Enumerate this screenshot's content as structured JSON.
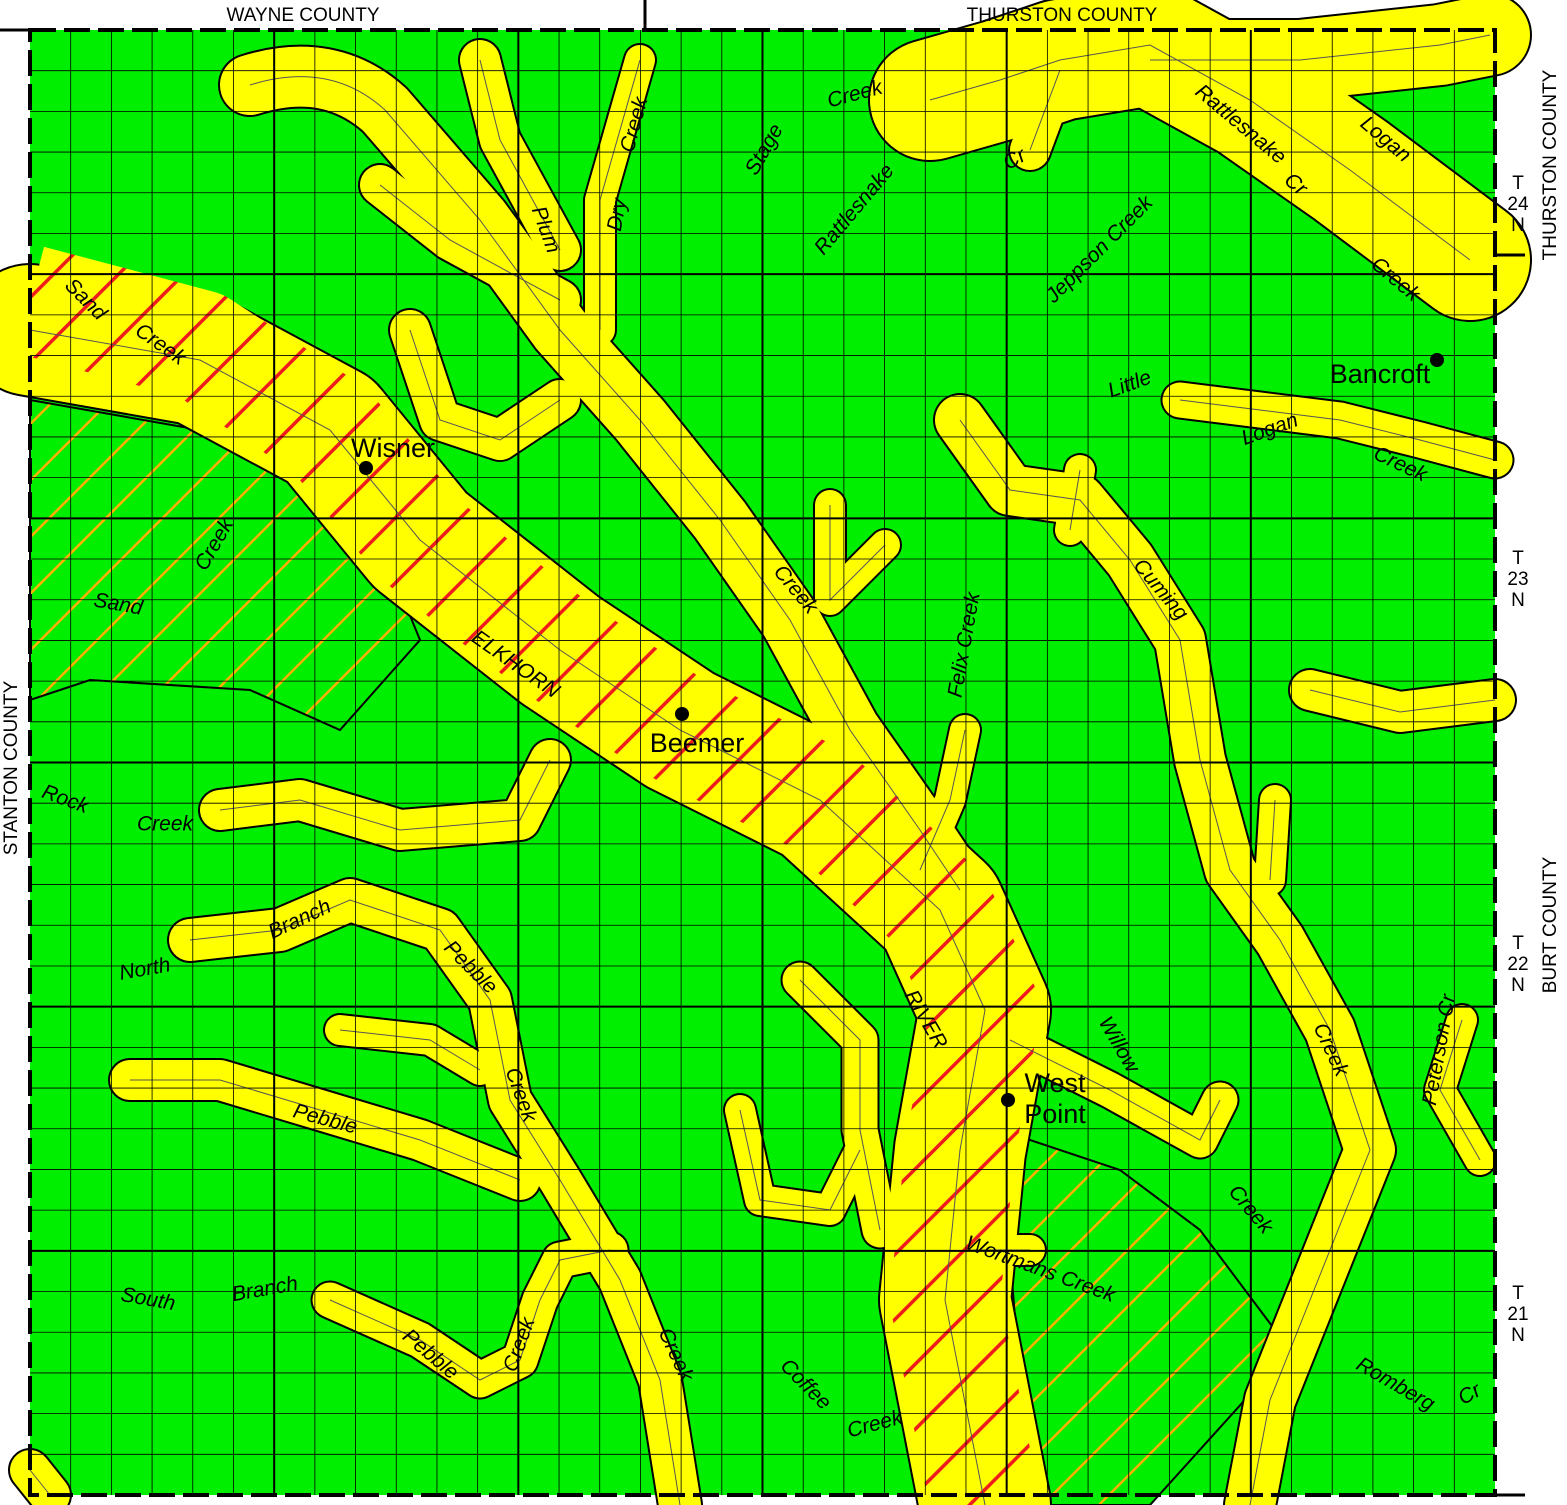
{
  "counties": {
    "north_west": "WAYNE COUNTY",
    "north_east": "THURSTON COUNTY",
    "east_north": "THURSTON COUNTY",
    "east_south": "BURT COUNTY",
    "west": "STANTON COUNTY"
  },
  "townships": [
    [
      "T",
      "24",
      "N"
    ],
    [
      "T",
      "23",
      "N"
    ],
    [
      "T",
      "22",
      "N"
    ],
    [
      "T",
      "21",
      "N"
    ]
  ],
  "towns": [
    [
      "Wisner"
    ],
    [
      "Beemer"
    ],
    [
      "West",
      "Point"
    ],
    [
      "Bancroft"
    ]
  ],
  "stream_labels": [
    "Sand",
    "Creek",
    "Creek",
    "Sand",
    "ELKHORN",
    "Rock",
    "Creek",
    "North",
    "Branch",
    "Pebble",
    "Creek",
    "Pebble",
    "South",
    "Branch",
    "Pebble",
    "Creek",
    "Creek",
    "Plum",
    "Dry",
    "Creek",
    "Stage",
    "Creek",
    "Rattlesnake",
    "Cr",
    "Rattlesnake",
    "Logan",
    "Cr",
    "Creek",
    "Jeppson Creek",
    "Little",
    "Logan",
    "Creek",
    "Creek",
    "Felix Creek",
    "Cuming",
    "RIVER",
    "Willow",
    "Creek",
    "Creek",
    "Peterson Cr",
    "Wortmans Creek",
    "Coffee",
    "Creek",
    "Romberg",
    "Cr"
  ]
}
